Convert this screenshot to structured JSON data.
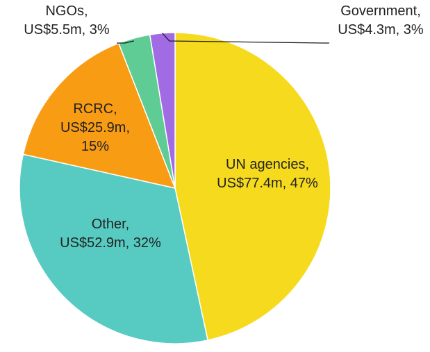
{
  "chart_data": {
    "type": "pie",
    "title": "",
    "slices": [
      {
        "label_lines": [
          "UN agencies,",
          "US$77.4m, 47%"
        ],
        "category": "UN agencies",
        "value": 77.4,
        "percent": 47,
        "color": "#F5DA1E"
      },
      {
        "label_lines": [
          "Other,",
          "US$52.9m, 32%"
        ],
        "category": "Other",
        "value": 52.9,
        "percent": 32,
        "color": "#57CBC1"
      },
      {
        "label_lines": [
          "RCRC,",
          "US$25.9m,",
          "15%"
        ],
        "category": "RCRC",
        "value": 25.9,
        "percent": 15,
        "color": "#F89C14"
      },
      {
        "label_lines": [
          "NGOs,",
          "US$5.5m, 3%"
        ],
        "category": "NGOs",
        "value": 5.5,
        "percent": 3,
        "color": "#5ECC94"
      },
      {
        "label_lines": [
          "Government,",
          "US$4.3m, 3%"
        ],
        "category": "Government",
        "value": 4.3,
        "percent": 3,
        "color": "#A06BE3"
      }
    ]
  }
}
